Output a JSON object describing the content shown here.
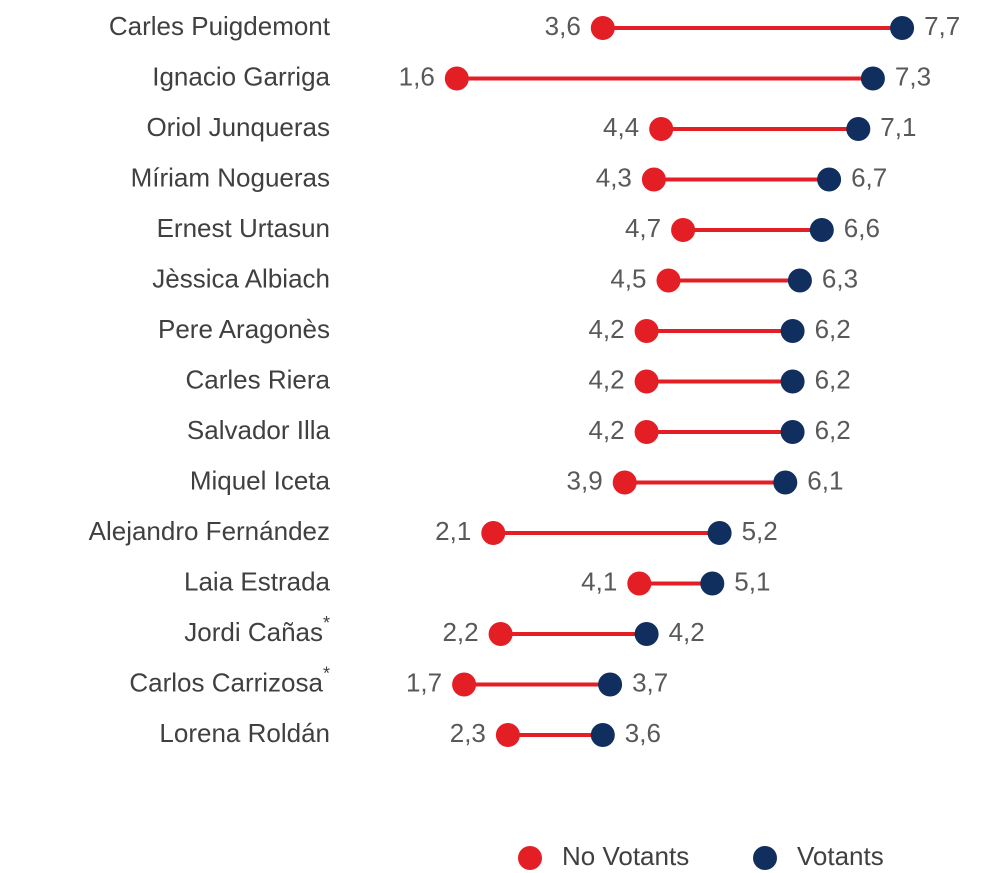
{
  "chart_data": {
    "type": "dumbbell",
    "categories": [
      "Carles Puigdemont",
      "Ignacio Garriga",
      "Oriol Junqueras",
      "Míriam Nogueras",
      "Ernest Urtasun",
      "Jèssica Albiach",
      "Pere Aragonès",
      "Carles Riera",
      "Salvador Illa",
      "Miquel Iceta",
      "Alejandro Fernández",
      "Laia Estrada",
      "Jordi Cañas*",
      "Carlos Carrizosa*",
      "Lorena Roldán"
    ],
    "series": [
      {
        "name": "No Votants",
        "color": "#e31e24",
        "values": [
          3.6,
          1.6,
          4.4,
          4.3,
          4.7,
          4.5,
          4.2,
          4.2,
          4.2,
          3.9,
          2.1,
          4.1,
          2.2,
          1.7,
          2.3
        ],
        "value_labels": [
          "3,6",
          "1,6",
          "4,4",
          "4,3",
          "4,7",
          "4,5",
          "4,2",
          "4,2",
          "4,2",
          "3,9",
          "2,1",
          "4,1",
          "2,2",
          "1,7",
          "2,3"
        ]
      },
      {
        "name": "Votants",
        "color": "#102f5e",
        "values": [
          7.7,
          7.3,
          7.1,
          6.7,
          6.6,
          6.3,
          6.2,
          6.2,
          6.2,
          6.1,
          5.2,
          5.1,
          4.2,
          3.7,
          3.6
        ],
        "value_labels": [
          "7,7",
          "7,3",
          "7,1",
          "6,7",
          "6,6",
          "6,3",
          "6,2",
          "6,2",
          "6,2",
          "6,1",
          "5,2",
          "5,1",
          "4,2",
          "3,7",
          "3,6"
        ]
      }
    ],
    "legend": "bottom-right"
  }
}
